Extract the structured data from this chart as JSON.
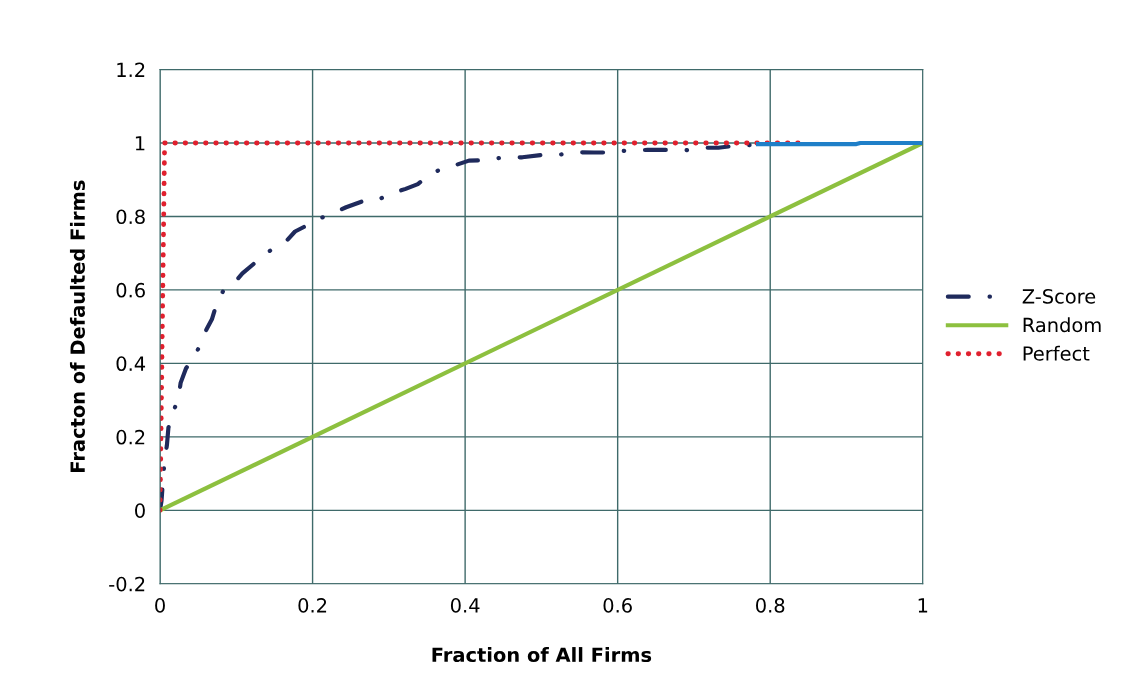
{
  "chart_data": {
    "type": "line",
    "xlabel": "Fraction of All Firms",
    "ylabel": "Fracton of Defaulted Firms",
    "xlim": [
      0,
      1
    ],
    "ylim": [
      -0.2,
      1.2
    ],
    "xticks": [
      0,
      0.2,
      0.4,
      0.6,
      0.8,
      1
    ],
    "yticks": [
      -0.2,
      0,
      0.2,
      0.4,
      0.6,
      0.8,
      1,
      1.2
    ],
    "grid": true,
    "legend": "right",
    "marker": "none",
    "series": [
      {
        "name": "Z-Score",
        "color": "#1f2a5c",
        "line_style": "dashdot",
        "x": [
          0,
          0.002,
          0.004,
          0.006,
          0.009,
          0.011,
          0.017,
          0.024,
          0.027,
          0.034,
          0.043,
          0.053,
          0.061,
          0.068,
          0.074,
          0.083,
          0.096,
          0.108,
          0.124,
          0.134,
          0.149,
          0.166,
          0.177,
          0.194,
          0.21,
          0.225,
          0.244,
          0.265,
          0.284,
          0.301,
          0.322,
          0.338,
          0.352,
          0.369,
          0.382,
          0.405,
          0.431,
          0.449,
          0.475,
          0.499,
          0.521,
          0.543,
          0.569,
          0.592,
          0.614,
          0.639,
          0.664,
          0.689,
          0.711,
          0.732,
          0.755,
          0.782
        ],
        "values": [
          0,
          0.027,
          0.086,
          0.136,
          0.177,
          0.225,
          0.268,
          0.302,
          0.347,
          0.386,
          0.414,
          0.45,
          0.493,
          0.52,
          0.561,
          0.598,
          0.616,
          0.645,
          0.673,
          0.691,
          0.714,
          0.734,
          0.759,
          0.777,
          0.795,
          0.807,
          0.825,
          0.841,
          0.843,
          0.861,
          0.875,
          0.888,
          0.911,
          0.93,
          0.936,
          0.952,
          0.953,
          0.961,
          0.961,
          0.967,
          0.967,
          0.975,
          0.974,
          0.974,
          0.98,
          0.981,
          0.981,
          0.98,
          0.987,
          0.987,
          0.993,
          0.995
        ]
      },
      {
        "name": "Random",
        "color": "#8dc03f",
        "line_style": "solid",
        "x": [
          0,
          1
        ],
        "values": [
          0,
          1
        ]
      },
      {
        "name": "Perfect",
        "color": "#e0202e",
        "line_style": "dotted",
        "x": [
          0,
          0.006,
          0.84
        ],
        "values": [
          0,
          1,
          1
        ]
      },
      {
        "color": "#1f7fc8",
        "line_style": "solid",
        "x": [
          0.784,
          0.913,
          0.918,
          1
        ],
        "values": [
          0.997,
          0.997,
          1,
          1
        ]
      }
    ]
  }
}
